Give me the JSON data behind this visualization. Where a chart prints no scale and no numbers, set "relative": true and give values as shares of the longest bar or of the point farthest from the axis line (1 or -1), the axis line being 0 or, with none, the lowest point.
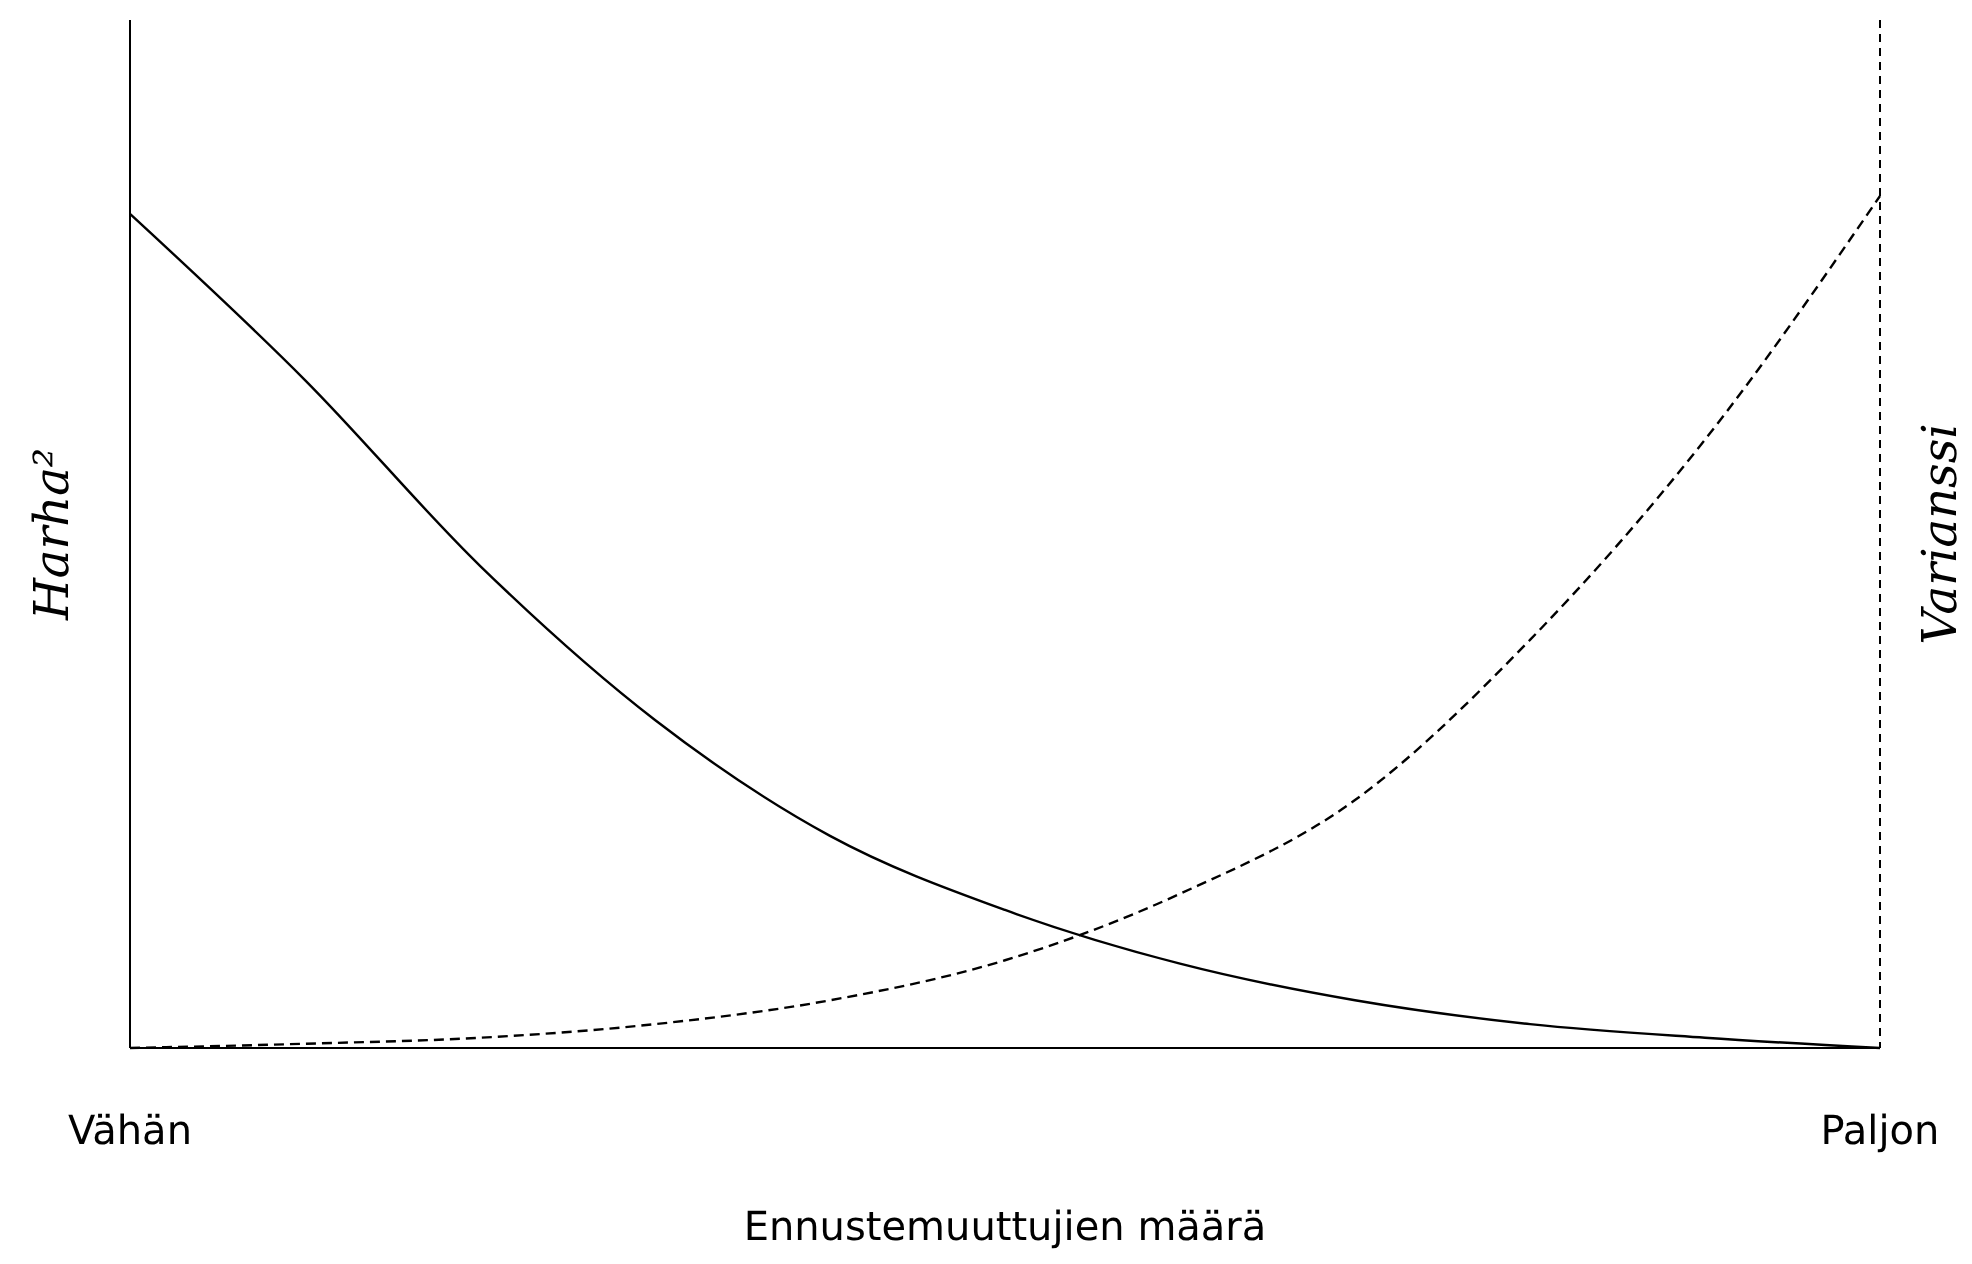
{
  "chart_data": {
    "type": "line",
    "relative": true,
    "ylabel": "Harha²",
    "y2label": "Varianssi",
    "xlabel": "Ennustemuuttujien määrä",
    "categories": [
      "Vähän",
      null,
      null,
      null,
      null,
      null,
      null,
      null,
      null,
      null,
      "Paljon"
    ],
    "series": [
      {
        "color": "#000000",
        "line_style": "solid",
        "values": [
          0.979,
          0.784,
          0.566,
          0.385,
          0.249,
          0.162,
          0.099,
          0.056,
          0.028,
          0.012,
          0
        ]
      },
      {
        "color": "#000000",
        "line_style": "dashed",
        "values": [
          0,
          0.005,
          0.012,
          0.028,
          0.056,
          0.103,
          0.181,
          0.291,
          0.479,
          0.714,
          1
        ]
      }
    ]
  }
}
